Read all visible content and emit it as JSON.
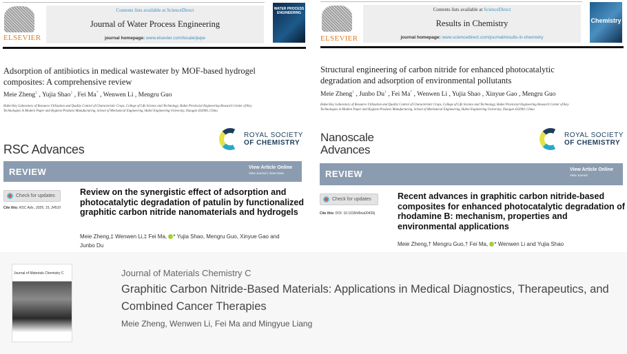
{
  "papers": [
    {
      "publisher": "ELSEVIER",
      "contents": "Contents lists available at",
      "sciencedirect": "ScienceDirect",
      "journal": "Journal of Water Process Engineering",
      "homepage_label": "journal homepage:",
      "homepage_url": "www.elsevier.com/locate/jwpe",
      "cover_text": "WATER PROCESS ENGINEERING",
      "title": "Adsorption of antibiotics in medical wastewater by MOF-based hydrogel composites: A comprehensive review",
      "authors": [
        {
          "name": "Meie Zheng",
          "mark": "1"
        },
        {
          "name": "Yujia Shao",
          "mark": "1"
        },
        {
          "name": "Fei Ma",
          "mark": "*"
        },
        {
          "name": "Wenwen Li",
          "mark": ""
        },
        {
          "name": "Mengru Guo",
          "mark": ""
        }
      ],
      "affiliation": "Hubei Key Laboratory of Resource Utilization and Quality Control of Characteristic Crops, College of Life Science and Technology, Hubei Provincial Engineering Research Center of Key Technologies in Modern Paper and Hygiene Products Manufacturing, School of Mechanical Engineering, Hubei Engineering University, Xiaogan 432000, China"
    },
    {
      "publisher": "ELSEVIER",
      "contents": "Contents lists available at",
      "sciencedirect": "ScienceDirect",
      "journal": "Results in Chemistry",
      "homepage_label": "journal homepage:",
      "homepage_url": "www.sciencedirect.com/journal/results-in-chemistry",
      "cover_text": "Chemistry",
      "title": "Structural engineering of carbon nitride for enhanced photocatalytic degradation and adsorption of environmental pollutants",
      "authors": [
        {
          "name": "Meie Zheng",
          "mark": "1"
        },
        {
          "name": "Junbo Du",
          "mark": "1"
        },
        {
          "name": "Fei Ma",
          "mark": "*"
        },
        {
          "name": "Wenwen Li",
          "mark": ""
        },
        {
          "name": "Yujia Shao",
          "mark": ""
        },
        {
          "name": "Xinyue Gao",
          "mark": ""
        },
        {
          "name": "Mengru Guo",
          "mark": ""
        }
      ],
      "affiliation": "Hubei Key Laboratory of Resource Utilization and Quality Control of Characteristic Crops, College of Life Science and Technology, Hubei Provincial Engineering Research Center of Key Technologies in Modern Paper and Hygiene Products Manufacturing, School of Mechanical Engineering, Hubei Engineering University, Xiaogan 432000, China"
    },
    {
      "journal": "RSC Advances",
      "rsc_line1": "ROYAL SOCIETY",
      "rsc_line2": "OF CHEMISTRY",
      "type": "REVIEW",
      "view_online": "View Article Online",
      "view_links": "View Journal | View Issue",
      "check": "Check for updates",
      "cite_label": "Cite this:",
      "cite": "RSC Adv., 2025, 15, 24510",
      "title": "Review on the synergistic effect of adsorption and photocatalytic degradation of patulin by functionalized graphitic carbon nitride nanomaterials and hydrogels",
      "authors_a": "Meie Zheng,‡ Wenwen Li,‡ Fei Ma,",
      "authors_b": "* Yujia Shao, Mengru Guo, Xinyue Gao and Junbo Du"
    },
    {
      "journal_line1": "Nanoscale",
      "journal_line2": "Advances",
      "rsc_line1": "ROYAL SOCIETY",
      "rsc_line2": "OF CHEMISTRY",
      "type": "REVIEW",
      "view_online": "View Article Online",
      "view_links": "View Journal",
      "check": "Check for updates",
      "cite_label": "Cite this:",
      "cite": "DOI: 10.1039/d5na00439j",
      "title": "Recent advances in graphitic carbon nitride-based composites for enhanced photocatalytic degradation of rhodamine B: mechanism, properties and environmental applications",
      "authors_a": "Meie Zheng,† Mengru Guo,† Fei Ma,",
      "authors_b": "* Wenwen Li and Yujia Shao"
    },
    {
      "cover_text": "Journal of Materials Chemistry C",
      "journal": "Journal of Materials Chemistry C",
      "title": "Graphitic Carbon Nitride-Based Materials: Applications in Medical Diagnostics, Therapeutics, and Combined Cancer Therapies",
      "authors": "Meie Zheng, Wenwen Li, Fei Ma and Mingyue Liang"
    }
  ]
}
